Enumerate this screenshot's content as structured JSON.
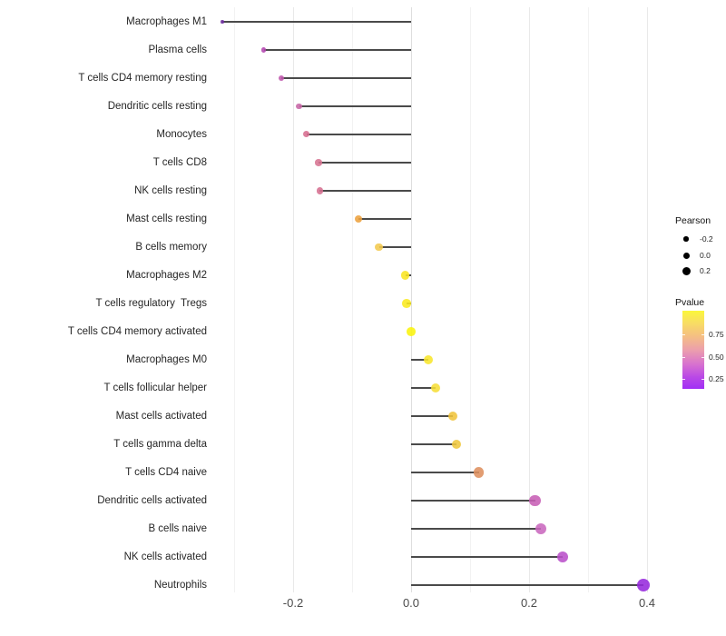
{
  "figure": {
    "background": "#ffffff"
  },
  "chart_data": {
    "type": "scatter",
    "variant": "lollipop",
    "orientation": "horizontal",
    "title": "",
    "xlabel": "",
    "ylabel": "",
    "categories": [
      "Macrophages M1",
      "Plasma cells",
      "T cells CD4 memory resting",
      "Dendritic cells resting",
      "Monocytes",
      "T cells CD8",
      "NK cells resting",
      "Mast cells resting",
      "B cells memory",
      "Macrophages M2",
      "T cells regulatory  Tregs",
      "T cells CD4 memory activated",
      "Macrophages M0",
      "T cells follicular helper",
      "Mast cells activated",
      "T cells gamma delta",
      "T cells CD4 naive",
      "Dendritic cells activated",
      "B cells naive",
      "NK cells activated",
      "Neutrophils"
    ],
    "series": [
      {
        "name": "Pearson correlation",
        "values": [
          -0.32,
          -0.25,
          -0.22,
          -0.19,
          -0.177,
          -0.157,
          -0.155,
          -0.089,
          -0.054,
          -0.01,
          -0.008,
          0.0,
          0.029,
          0.042,
          0.071,
          0.077,
          0.115,
          0.21,
          0.22,
          0.257,
          0.394
        ]
      }
    ],
    "dot_colors_pvalue_mapped": [
      "#6E2D9F",
      "#B447B0",
      "#BF57AC",
      "#C767A6",
      "#D76D90",
      "#D77492",
      "#D66F91",
      "#EDA23F",
      "#F2C94E",
      "#F9E522",
      "#F9E91F",
      "#FBF40D",
      "#F8E62C",
      "#F6DE38",
      "#F0C43C",
      "#EFC73D",
      "#DE8F5F",
      "#C75FB5",
      "#C968BE",
      "#BA50C9",
      "#9629DD"
    ],
    "x_ticks": [
      "-0.2",
      "0.0",
      "0.2",
      "0.4"
    ],
    "x_tick_values": [
      -0.2,
      0.0,
      0.2,
      0.4
    ],
    "x_grid_values": [
      -0.3,
      -0.2,
      -0.1,
      0.0,
      0.1,
      0.2,
      0.3,
      0.4
    ],
    "xlim": [
      -0.345,
      0.44
    ],
    "grid": "faint vertical gridlines every 0.1",
    "legend_position": "right",
    "stem_color": "#4a4a4a"
  },
  "legend": {
    "size": {
      "title": "Pearson",
      "entries": [
        {
          "label": "-0.2"
        },
        {
          "label": "0.0"
        },
        {
          "label": "0.2"
        }
      ]
    },
    "color": {
      "title": "Pvalue",
      "labels": [
        "0.75",
        "0.50",
        "0.25"
      ],
      "gradient_top_to_bottom": [
        "#FBF73B",
        "#F5C082",
        "#EC9FAC",
        "#D873CE",
        "#A02FF5"
      ]
    }
  }
}
